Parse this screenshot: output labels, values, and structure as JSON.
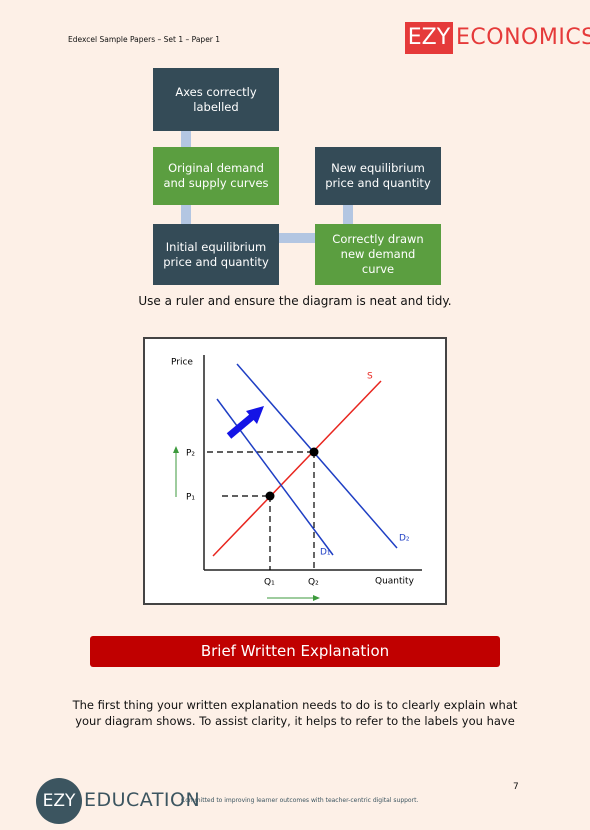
{
  "header": {
    "title": "Edexcel Sample Papers – Set 1 – Paper 1",
    "logo": {
      "brand": "EZY",
      "name": "ECONOMICS"
    }
  },
  "flow": {
    "nodes": [
      "Axes correctly labelled",
      "Original demand and supply curves",
      "New equilibrium price and quantity",
      "Initial equilibrium price and quantity",
      "Correctly drawn new demand curve"
    ]
  },
  "instruction": "Use a ruler and ensure the diagram is neat and tidy.",
  "diagram": {
    "y_axis": "Price",
    "x_axis": "Quantity",
    "supply": "S",
    "p2": "P₂",
    "p1": "P₁",
    "d1": "D₁",
    "d2": "D₂",
    "q1": "Q₁",
    "q2": "Q₂"
  },
  "section": {
    "heading": "Brief Written Explanation",
    "lines": [
      "The first thing your written explanation needs to do is to clearly explain what",
      "your diagram shows. To assist clarity, it helps to refer to the labels you have"
    ]
  },
  "page_number": "7",
  "footer": {
    "brand": "EZY",
    "name": "EDUCATION",
    "tagline": "Committed to improving learner outcomes with teacher-centric digital support."
  }
}
